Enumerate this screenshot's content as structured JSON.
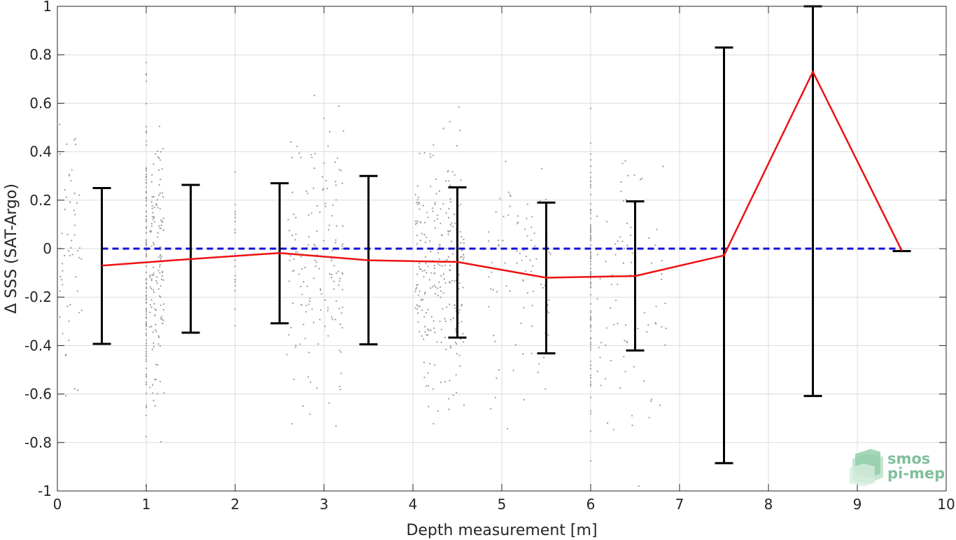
{
  "chart_data": {
    "type": "scatter",
    "xlabel": "Depth measurement [m]",
    "ylabel": "Δ SSS (SAT-Argo)",
    "xlim": [
      0,
      10
    ],
    "ylim": [
      -1,
      1
    ],
    "x_ticks": [
      0,
      1,
      2,
      3,
      4,
      5,
      6,
      7,
      8,
      9,
      10
    ],
    "y_ticks": [
      -1,
      -0.8,
      -0.6,
      -0.4,
      -0.2,
      0,
      0.2,
      0.4,
      0.6,
      0.8,
      1
    ],
    "x_tick_labels": [
      "0",
      "1",
      "2",
      "3",
      "4",
      "5",
      "6",
      "7",
      "8",
      "9",
      "10"
    ],
    "y_tick_labels": [
      "-1",
      "-0.8",
      "-0.6",
      "-0.4",
      "-0.2",
      "0",
      "0.2",
      "0.4",
      "0.6",
      "0.8",
      "1"
    ],
    "grid": true,
    "reference_line": {
      "y": 0,
      "style": "dashed",
      "color": "#1010dd"
    },
    "series": [
      {
        "type": "line",
        "color": "#ee1111",
        "x": [
          0.5,
          1.5,
          2.5,
          3.5,
          4.5,
          5.5,
          6.5,
          7.5,
          8.5,
          9.5
        ],
        "y": [
          -0.07,
          -0.043,
          -0.018,
          -0.048,
          -0.055,
          -0.12,
          -0.113,
          -0.028,
          0.73,
          -0.008
        ]
      },
      {
        "type": "errorbar",
        "color": "#000000",
        "x": [
          0.5,
          1.5,
          2.5,
          3.5,
          4.5,
          5.5,
          6.5,
          7.5,
          8.5,
          9.5
        ],
        "low": [
          -0.393,
          -0.347,
          -0.308,
          -0.395,
          -0.367,
          -0.432,
          -0.42,
          -0.885,
          -0.608,
          -0.01
        ],
        "high": [
          0.25,
          0.263,
          0.27,
          0.3,
          0.253,
          0.19,
          0.195,
          0.83,
          1.0,
          -0.01
        ]
      },
      {
        "type": "scatter",
        "color": "#9a9a9a",
        "clusters": [
          {
            "x": 0.15,
            "xspread": 0.25,
            "ymean": -0.05,
            "ystd": 0.32,
            "n": 55
          },
          {
            "x": 1.0,
            "xspread": 0.0,
            "ymean": -0.05,
            "ystd": 0.35,
            "n": 110
          },
          {
            "x": 1.12,
            "xspread": 0.16,
            "ymean": -0.06,
            "ystd": 0.3,
            "n": 140
          },
          {
            "x": 2.0,
            "xspread": 0.0,
            "ymean": -0.01,
            "ystd": 0.2,
            "n": 18
          },
          {
            "x": 2.9,
            "xspread": 0.65,
            "ymean": -0.07,
            "ystd": 0.3,
            "n": 160
          },
          {
            "x": 4.3,
            "xspread": 0.55,
            "ymean": -0.08,
            "ystd": 0.25,
            "n": 260
          },
          {
            "x": 5.2,
            "xspread": 0.7,
            "ymean": -0.1,
            "ystd": 0.25,
            "n": 90
          },
          {
            "x": 6.0,
            "xspread": 0.0,
            "ymean": -0.1,
            "ystd": 0.3,
            "n": 90
          },
          {
            "x": 6.45,
            "xspread": 0.8,
            "ymean": -0.1,
            "ystd": 0.3,
            "n": 85
          }
        ]
      }
    ]
  },
  "logo": {
    "line1": "smos",
    "line2": "pi-mep"
  }
}
